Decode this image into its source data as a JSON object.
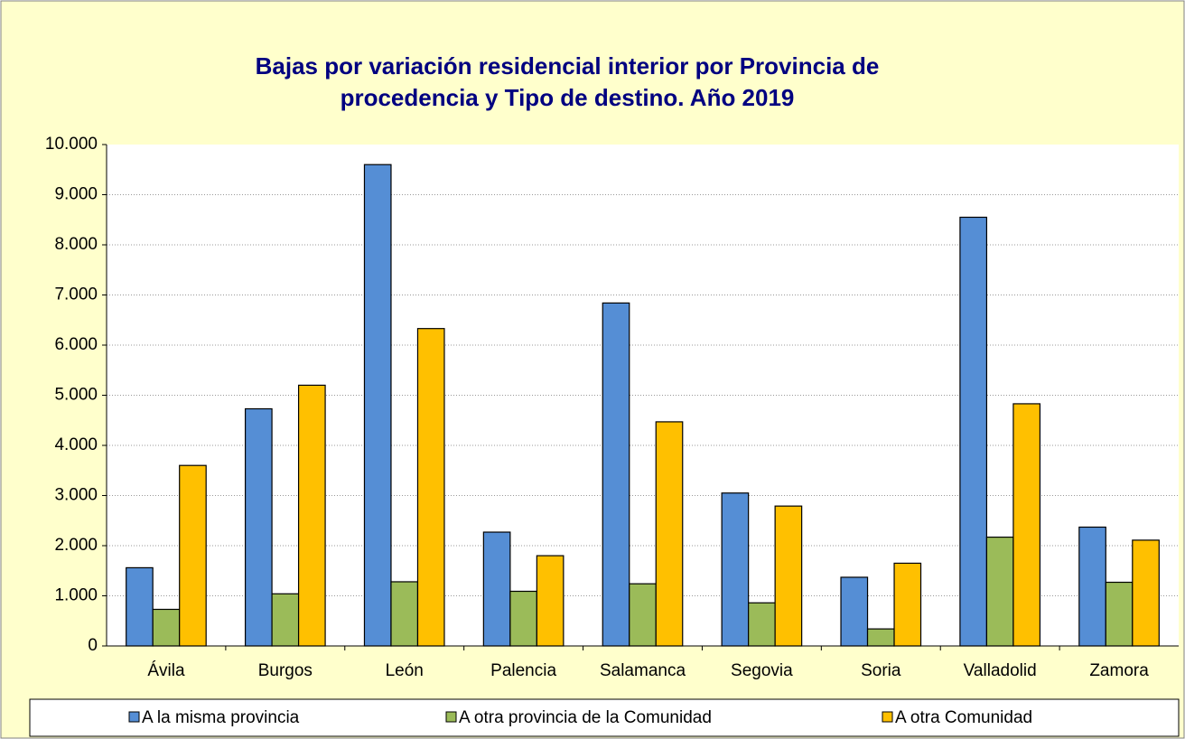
{
  "chart_data": {
    "type": "bar",
    "title": [
      "Bajas por variación residencial interior por Provincia de",
      "procedencia y Tipo de destino. Año 2019"
    ],
    "categories": [
      "Ávila",
      "Burgos",
      "León",
      "Palencia",
      "Salamanca",
      "Segovia",
      "Soria",
      "Valladolid",
      "Zamora"
    ],
    "series": [
      {
        "name": "A la misma provincia",
        "color": "#558ed5",
        "values": [
          1560,
          4730,
          9600,
          2270,
          6840,
          3050,
          1370,
          8550,
          2370
        ]
      },
      {
        "name": "A otra provincia de la Comunidad",
        "color": "#9bbb59",
        "values": [
          730,
          1040,
          1280,
          1090,
          1240,
          860,
          340,
          2170,
          1270
        ]
      },
      {
        "name": "A otra Comunidad",
        "color": "#ffc000",
        "values": [
          3600,
          5200,
          6330,
          1800,
          4470,
          2790,
          1650,
          4830,
          2110
        ]
      }
    ],
    "ylim": [
      0,
      10000
    ],
    "yticks": [
      0,
      {
        "value": 1000,
        "label": "1.000"
      },
      {
        "value": 2000,
        "label": "2.000"
      },
      {
        "value": 3000,
        "label": "3.000"
      },
      {
        "value": 4000,
        "label": "4.000"
      },
      {
        "value": 5000,
        "label": "5.000"
      },
      {
        "value": 6000,
        "label": "6.000"
      },
      {
        "value": 7000,
        "label": "7.000"
      },
      {
        "value": 8000,
        "label": "8.000"
      },
      {
        "value": 9000,
        "label": "9.000"
      },
      {
        "value": 10000,
        "label": "10.000"
      }
    ],
    "grid": true,
    "legend": "bottom"
  }
}
